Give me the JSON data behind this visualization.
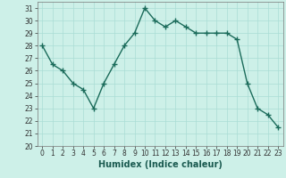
{
  "x": [
    0,
    1,
    2,
    3,
    4,
    5,
    6,
    7,
    8,
    9,
    10,
    11,
    12,
    13,
    14,
    15,
    16,
    17,
    18,
    19,
    20,
    21,
    22,
    23
  ],
  "y": [
    28,
    26.5,
    26,
    25,
    24.5,
    23,
    25,
    26.5,
    28,
    29,
    31,
    30,
    29.5,
    30,
    29.5,
    29,
    29,
    29,
    29,
    28.5,
    25,
    23,
    22.5,
    21.5
  ],
  "line_color": "#1a6b5a",
  "marker": "+",
  "marker_size": 4,
  "xlabel": "Humidex (Indice chaleur)",
  "ylim": [
    20,
    31.5
  ],
  "xlim": [
    -0.5,
    23.5
  ],
  "yticks": [
    20,
    21,
    22,
    23,
    24,
    25,
    26,
    27,
    28,
    29,
    30,
    31
  ],
  "xticks": [
    0,
    1,
    2,
    3,
    4,
    5,
    6,
    7,
    8,
    9,
    10,
    11,
    12,
    13,
    14,
    15,
    16,
    17,
    18,
    19,
    20,
    21,
    22,
    23
  ],
  "bg_color": "#cdf0e8",
  "grid_color": "#aaddd5",
  "tick_label_fontsize": 5.5,
  "xlabel_fontsize": 7,
  "linewidth": 1.0,
  "marker_linewidth": 1.0
}
